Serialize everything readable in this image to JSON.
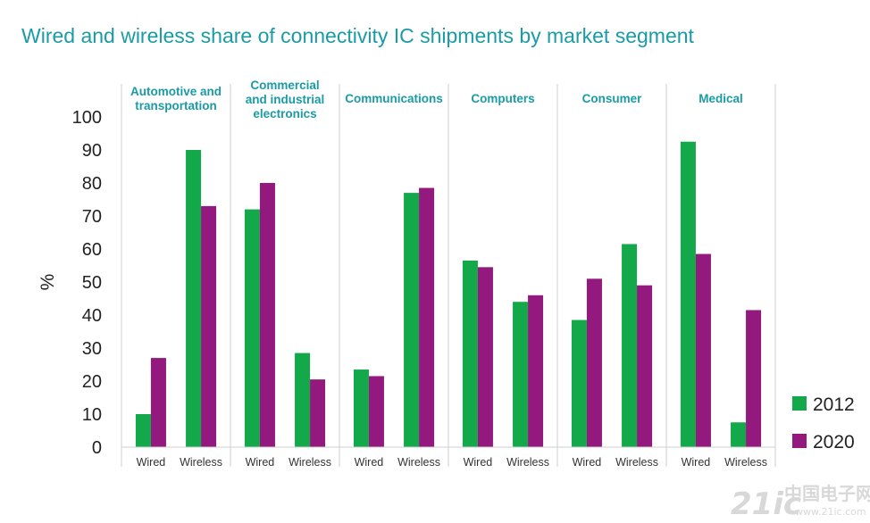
{
  "chart_data": {
    "type": "bar",
    "title": "Wired and wireless share of connectivity IC shipments by market segment",
    "ylabel": "%",
    "ylim": [
      0,
      100
    ],
    "yticks": [
      "0",
      "10",
      "20",
      "30",
      "40",
      "50",
      "60",
      "70",
      "80",
      "90",
      "100"
    ],
    "segments": [
      {
        "label": [
          "Automotive and",
          "transportation"
        ],
        "bars": [
          {
            "tick": "Wired",
            "v2012": 10,
            "v2020": 27
          },
          {
            "tick": "Wireless",
            "v2012": 90,
            "v2020": 73
          }
        ]
      },
      {
        "label": [
          "Commercial",
          "and industrial",
          "electronics"
        ],
        "bars": [
          {
            "tick": "Wired",
            "v2012": 72,
            "v2020": 80
          },
          {
            "tick": "Wireless",
            "v2012": 28.5,
            "v2020": 20.5
          }
        ]
      },
      {
        "label": [
          "Communications"
        ],
        "bars": [
          {
            "tick": "Wired",
            "v2012": 23.5,
            "v2020": 21.5
          },
          {
            "tick": "Wireless",
            "v2012": 77,
            "v2020": 78.5
          }
        ]
      },
      {
        "label": [
          "Computers"
        ],
        "bars": [
          {
            "tick": "Wired",
            "v2012": 56.5,
            "v2020": 54.5
          },
          {
            "tick": "Wireless",
            "v2012": 44,
            "v2020": 46
          }
        ]
      },
      {
        "label": [
          "Consumer"
        ],
        "bars": [
          {
            "tick": "Wired",
            "v2012": 38.5,
            "v2020": 51
          },
          {
            "tick": "Wireless",
            "v2012": 61.5,
            "v2020": 49
          }
        ]
      },
      {
        "label": [
          "Medical"
        ],
        "bars": [
          {
            "tick": "Wired",
            "v2012": 92.5,
            "v2020": 58.5
          },
          {
            "tick": "Wireless",
            "v2012": 7.5,
            "v2020": 41.5
          }
        ]
      }
    ],
    "series": [
      {
        "name": "2012",
        "key": "v2012",
        "color": "#13a84a"
      },
      {
        "name": "2020",
        "key": "v2020",
        "color": "#93197e"
      }
    ],
    "legend_position": "bottom-right",
    "grid": false
  },
  "watermark": {
    "text": "21ic",
    "cn_text": "中国电子网",
    "sub_text": "www.21ic.com"
  }
}
